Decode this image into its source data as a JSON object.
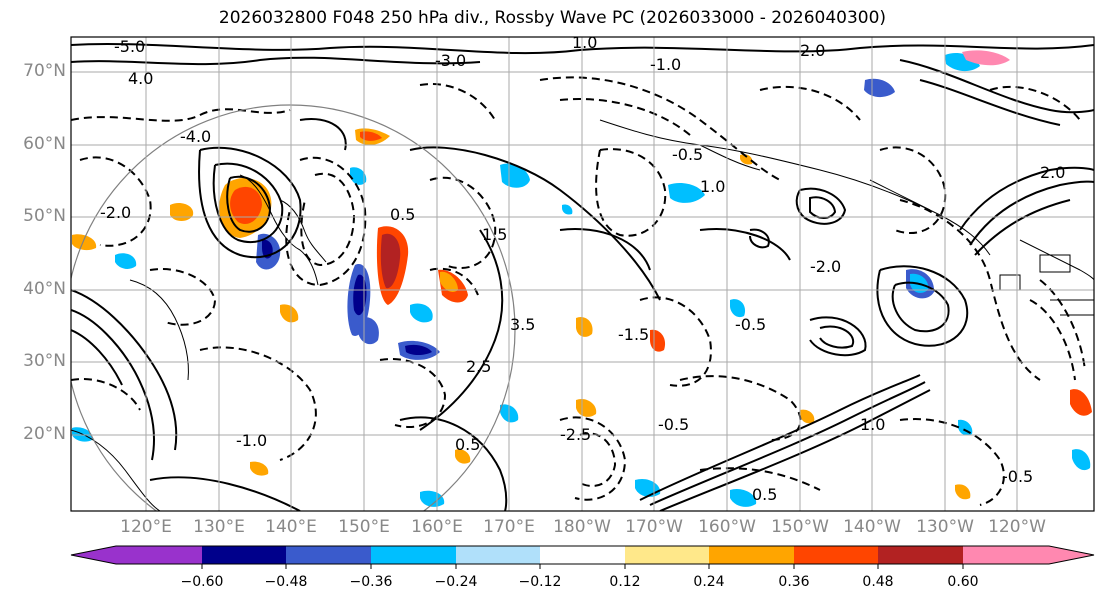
{
  "title": "2026032800 F048 250 hPa div., Rossby Wave PC (2026033000 - 2026040300)",
  "map": {
    "latitude_labels": [
      "70°N",
      "60°N",
      "50°N",
      "40°N",
      "30°N",
      "20°N"
    ],
    "longitude_labels": [
      "120°E",
      "130°E",
      "140°E",
      "150°E",
      "160°E",
      "170°E",
      "180°W",
      "170°W",
      "160°W",
      "150°W",
      "140°W",
      "130°W",
      "120°W"
    ],
    "contour_labels": [
      "-5.0",
      "4.0",
      "-3.0",
      "2.0",
      "-1.0",
      "1.0",
      "-4.0",
      "-2.0",
      "1.5",
      "0.5",
      "-0.5",
      "2.5",
      "3.5",
      "-1.5",
      "-2.0",
      "2.0",
      "1.0",
      "-0.5",
      "-1.0",
      "0.5",
      "-2.5",
      "-0.5",
      "0.5",
      "1.0",
      "-0.5"
    ]
  },
  "colorbar": {
    "tick_labels": [
      "−0.60",
      "−0.48",
      "−0.36",
      "−0.24",
      "−0.12",
      "0.12",
      "0.24",
      "0.36",
      "0.48",
      "0.60"
    ],
    "colors": [
      "#9932CC",
      "#00008B",
      "#3A5BCC",
      "#00BFFF",
      "#B0E0FA",
      "#FFFFFF",
      "#FFE88A",
      "#FFA500",
      "#FF4500",
      "#B22222",
      "#FF88B0"
    ]
  }
}
